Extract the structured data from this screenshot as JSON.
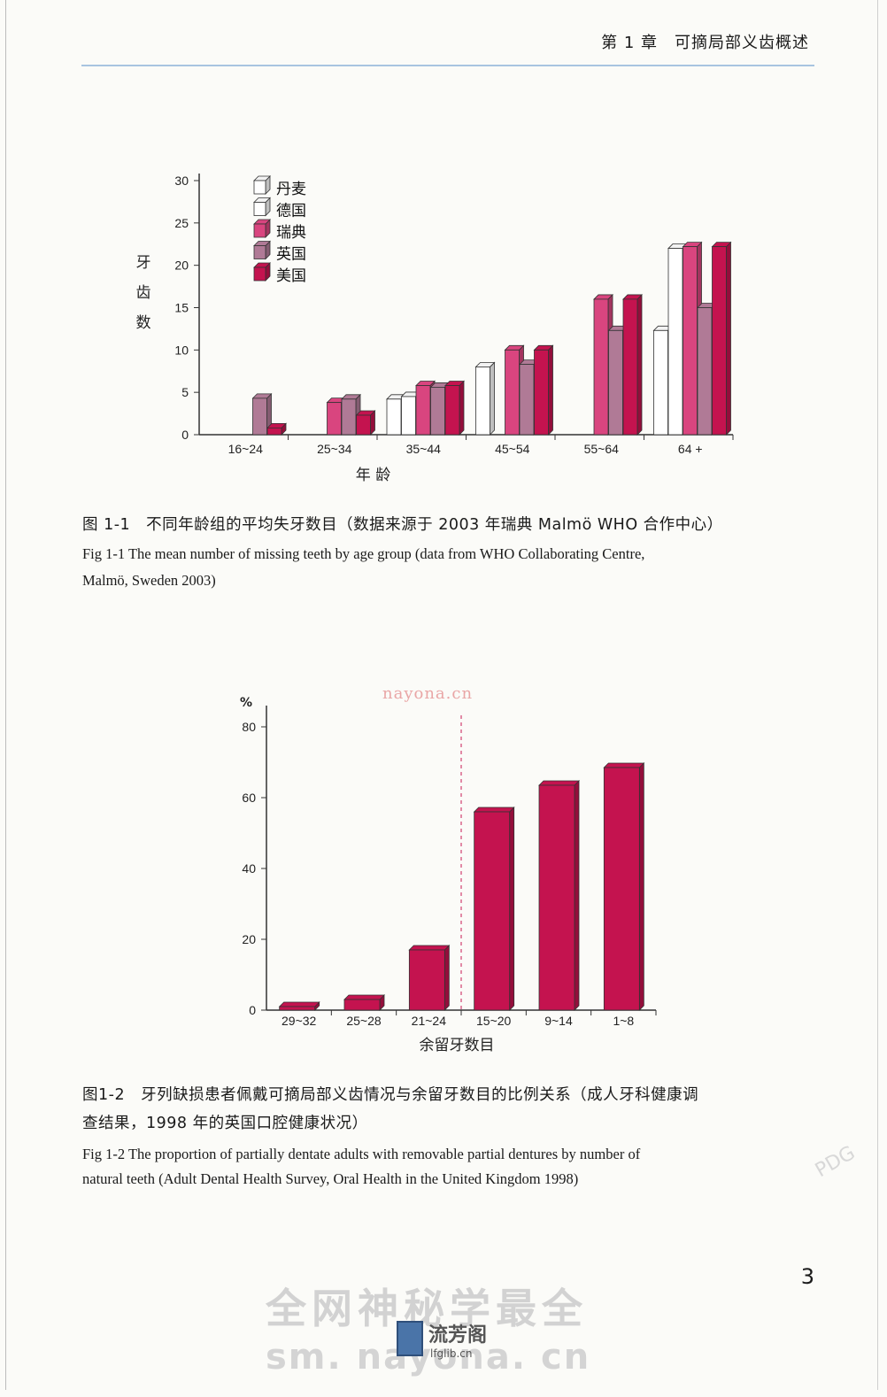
{
  "header": {
    "chapter": "第 1 章　可摘局部义齿概述"
  },
  "page_number": "3",
  "figure1": {
    "caption_cn": "图 1-1　不同年龄组的平均失牙数目（数据来源于 2003 年瑞典 Malmö WHO 合作中心）",
    "caption_en_1": "Fig 1-1  The mean number of missing teeth by age group (data from WHO Collaborating Centre,",
    "caption_en_2": "Malmö, Sweden 2003)"
  },
  "figure2": {
    "caption_cn_1": "图1-2　牙列缺损患者佩戴可摘局部义齿情况与余留牙数目的比例关系（成人牙科健康调",
    "caption_cn_2": "查结果，1998 年的英国口腔健康状况）",
    "caption_en_1": "Fig 1-2  The proportion of partially dentate adults with removable partial dentures by number of",
    "caption_en_2": "natural teeth (Adult Dental Health Survey, Oral Health in the United Kingdom 1998)"
  },
  "watermarks": {
    "url_top": "nayona.cn",
    "big_text": "全网神秘学最全",
    "url_bottom": "sm. nayona. cn",
    "logo_name": "流芳阁",
    "logo_site": "lfglib.cn",
    "pdg": "PDG"
  },
  "chart_data": [
    {
      "type": "bar",
      "categories": [
        "16~24",
        "25~34",
        "35~44",
        "45~54",
        "55~64",
        "64 +"
      ],
      "series": [
        {
          "name": "丹麦",
          "color": "#ffffff",
          "values": [
            null,
            null,
            4.2,
            8,
            null,
            12.3
          ]
        },
        {
          "name": "德国",
          "color": "#ffffff",
          "values": [
            null,
            null,
            4.5,
            null,
            null,
            22
          ]
        },
        {
          "name": "瑞典",
          "color": "#d9457f",
          "values": [
            null,
            3.8,
            5.8,
            10,
            16,
            22.2
          ]
        },
        {
          "name": "英国",
          "color": "#b07a96",
          "values": [
            4.3,
            4.2,
            5.6,
            8.3,
            12.3,
            15
          ]
        },
        {
          "name": "美国",
          "color": "#c4134f",
          "values": [
            0.8,
            2.3,
            5.8,
            10,
            16,
            22.2
          ]
        }
      ],
      "ylabel": "牙齿数",
      "xlabel": "年 龄",
      "yticks": [
        0,
        5,
        10,
        15,
        20,
        25,
        30
      ],
      "ylim": [
        0,
        30
      ],
      "legend": "top-left"
    },
    {
      "type": "bar",
      "categories": [
        "29~32",
        "25~28",
        "21~24",
        "15~20",
        "9~14",
        "1~8"
      ],
      "values": [
        1,
        3,
        17,
        56,
        63.5,
        68.5
      ],
      "ylabel": "%",
      "xlabel": "余留牙数目",
      "yticks": [
        0,
        20,
        40,
        60,
        80
      ],
      "ylim": [
        0,
        85
      ],
      "color": "#c4134f"
    }
  ]
}
